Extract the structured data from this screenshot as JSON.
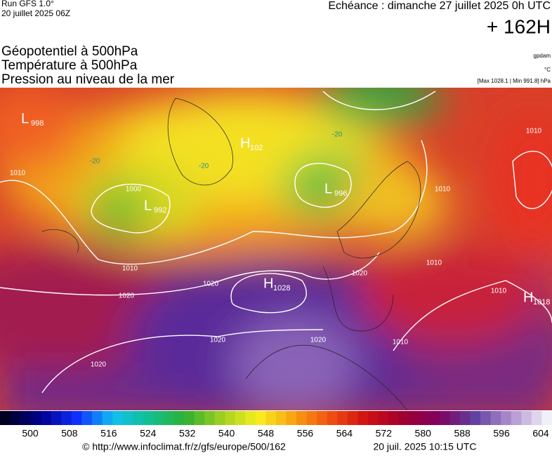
{
  "header": {
    "run": "Run GFS 1.0°",
    "run_date": "20 juillet 2025 06Z",
    "echeance": "Echéance : dimanche 27 juillet 2025 0h UTC",
    "lead": "+ 162H",
    "layers": [
      "Géopotentiel à 500hPa",
      "Température à 500hPa",
      "Pression au niveau de la mer"
    ],
    "units": [
      "gpdam",
      "°C",
      "[Max 1028.1 | Min 991.8] hPa"
    ]
  },
  "map": {
    "centers": [
      {
        "letter": "L",
        "value": 998
      },
      {
        "letter": "H",
        "value": 102
      },
      {
        "letter": "L",
        "value": 996
      },
      {
        "letter": "L",
        "value": 992
      },
      {
        "letter": "H",
        "value": 1028
      },
      {
        "letter": "H",
        "value": 1018
      }
    ],
    "isobar_labels": [
      1010,
      1010,
      1000,
      1020,
      1020,
      1020,
      1020,
      1020,
      1010,
      1010,
      1010,
      1010,
      1010,
      1020
    ],
    "temp_labels": [
      -20,
      -20,
      -20
    ]
  },
  "colorbar": {
    "ticks": [
      500,
      508,
      516,
      524,
      532,
      540,
      548,
      556,
      564,
      572,
      580,
      588,
      596,
      604
    ]
  },
  "footer": {
    "source": "© http://www.infoclimat.fr/z/gfs/europe/500/162",
    "generated": "20 juil. 2025 10:15 UTC"
  }
}
